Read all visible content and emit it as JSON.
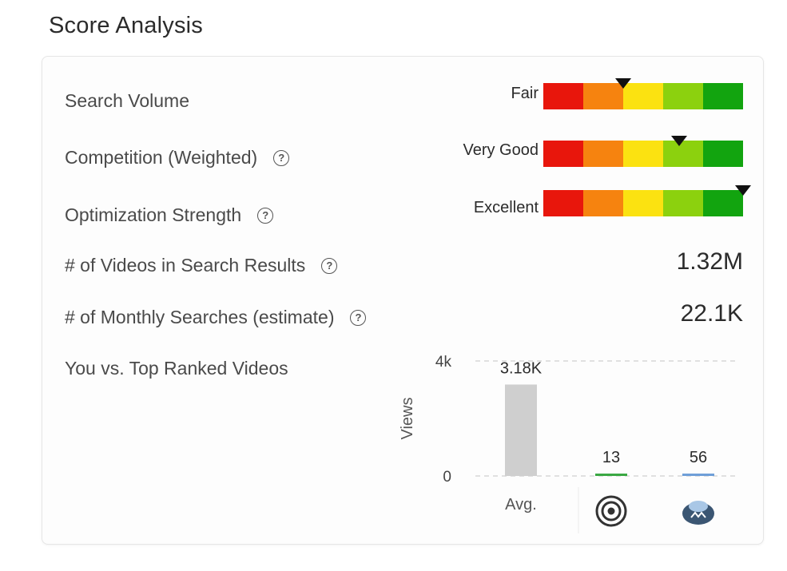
{
  "page_title": "Score Analysis",
  "rows": {
    "search_volume": {
      "label": "Search Volume",
      "rating": "Fair",
      "level": 0.4
    },
    "competition": {
      "label": "Competition (Weighted)",
      "rating": "Very Good",
      "level": 0.68
    },
    "optimization": {
      "label": "Optimization Strength",
      "rating": "Excellent",
      "level": 1.0
    },
    "videos_in_results": {
      "label": "# of Videos in Search Results",
      "value": "1.32M"
    },
    "monthly_searches": {
      "label": "# of Monthly Searches (estimate)",
      "value": "22.1K"
    },
    "vs_top": {
      "label": "You vs. Top Ranked Videos"
    }
  },
  "gauge_colors": [
    "#e8160c",
    "#f6830f",
    "#fbe211",
    "#8cd10e",
    "#12a40f"
  ],
  "icons": {
    "help": "question-circle-icon",
    "target": "target-icon",
    "avatar": "channel-avatar-icon"
  },
  "chart_data": {
    "type": "bar",
    "ylabel": "Views",
    "ylim": [
      0,
      4000
    ],
    "yticks": [
      "0",
      "4k"
    ],
    "categories": [
      "Avg.",
      "",
      ""
    ],
    "category_icons": [
      "",
      "target-icon",
      "channel-avatar-icon"
    ],
    "values": [
      3180,
      13,
      56
    ],
    "value_labels": [
      "3.18K",
      "13",
      "56"
    ],
    "bar_colors": [
      "#cfcfcf",
      "#3aa843",
      "#6f9fd8"
    ],
    "grid": true
  }
}
